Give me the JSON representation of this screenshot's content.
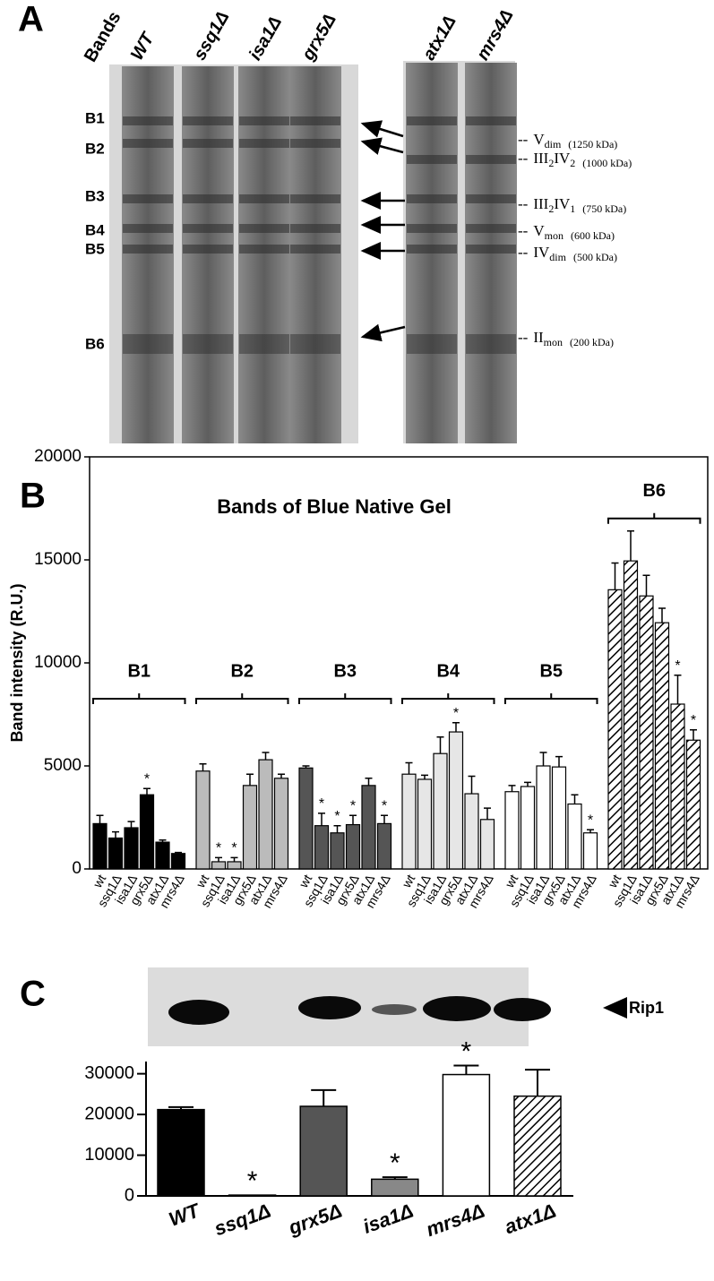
{
  "panel_a": {
    "label": "A",
    "bands_heading": "Bands",
    "lanes": [
      "WT",
      "ssq1Δ",
      "isa1Δ",
      "grx5Δ",
      "atx1Δ",
      "mrs4Δ"
    ],
    "bands": [
      "B1",
      "B2",
      "B3",
      "B4",
      "B5",
      "B6"
    ],
    "leader": "--",
    "complexes": [
      {
        "name": [
          "V",
          "dim"
        ],
        "mass": "(1250 kDa)"
      },
      {
        "name": [
          "III",
          "2",
          "IV",
          "2"
        ],
        "mass": "(1000 kDa)"
      },
      {
        "name": [
          "III",
          "2",
          "IV",
          "1"
        ],
        "mass": "(750 kDa)"
      },
      {
        "name": [
          "V",
          "mon"
        ],
        "mass": "(600 kDa)"
      },
      {
        "name": [
          "IV",
          "dim"
        ],
        "mass": "(500 kDa)"
      },
      {
        "name": [
          "II",
          "mon"
        ],
        "mass": "(200 kDa)"
      }
    ]
  },
  "panel_b": {
    "label": "B"
  },
  "panel_c": {
    "label": "C",
    "blot_label": "Rip1"
  },
  "chart_data": [
    {
      "type": "grouped_bar",
      "title": "Bands of Blue Native Gel",
      "y_label": "Band intensity (R.U.)",
      "categories": [
        "wt",
        "ssq1Δ",
        "isa1Δ",
        "grx5Δ",
        "atx1Δ",
        "mrs4Δ"
      ],
      "significance_label": "*",
      "groups": [
        {
          "name": "B1",
          "color": "#000000",
          "values": [
            2200,
            1500,
            2000,
            3600,
            1300,
            750
          ],
          "errors": [
            400,
            300,
            300,
            300,
            100,
            50
          ],
          "significant": [
            3
          ]
        },
        {
          "name": "B2",
          "color": "#bbbbbb",
          "values": [
            4750,
            350,
            350,
            4050,
            5300,
            4400
          ],
          "errors": [
            350,
            200,
            200,
            550,
            350,
            200
          ],
          "significant": [
            1,
            2
          ]
        },
        {
          "name": "B3",
          "color": "#555555",
          "values": [
            4900,
            2100,
            1750,
            2150,
            4050,
            2200
          ],
          "errors": [
            100,
            600,
            350,
            450,
            350,
            400
          ],
          "significant": [
            1,
            2,
            3,
            5
          ]
        },
        {
          "name": "B4",
          "color": "#e6e6e6",
          "values": [
            4600,
            4350,
            5600,
            6650,
            3650,
            2400
          ],
          "errors": [
            550,
            200,
            800,
            450,
            850,
            550
          ],
          "significant": [
            3
          ]
        },
        {
          "name": "B5",
          "color": "#ffffff",
          "values": [
            3750,
            4000,
            5000,
            4950,
            3150,
            1750
          ],
          "errors": [
            300,
            200,
            650,
            500,
            450,
            150
          ],
          "significant": [
            5
          ]
        },
        {
          "name": "B6",
          "color": "#ffffff",
          "hatched": true,
          "values": [
            13550,
            14950,
            13250,
            11950,
            8000,
            6250
          ],
          "errors": [
            1300,
            1450,
            1000,
            700,
            1400,
            500
          ],
          "significant": [
            4,
            5
          ]
        }
      ],
      "ylim": [
        0,
        20000
      ],
      "yticks": [
        0,
        5000,
        10000,
        15000,
        20000
      ]
    },
    {
      "type": "bar",
      "categories": [
        "WT",
        "ssq1Δ",
        "grx5Δ",
        "isa1Δ",
        "mrs4Δ",
        "atx1Δ"
      ],
      "values": [
        21200,
        200,
        22000,
        4100,
        29800,
        24500
      ],
      "errors": [
        600,
        null,
        4000,
        500,
        2200,
        6500
      ],
      "colors": [
        "#000000",
        "#000000",
        "#555555",
        "#888888",
        "#ffffff",
        "#ffffff"
      ],
      "hatched": [
        5
      ],
      "significant": [
        1,
        3,
        4
      ],
      "significance_label": "*",
      "ylim": [
        0,
        33000
      ],
      "yticks": [
        0,
        10000,
        20000,
        30000
      ]
    }
  ]
}
